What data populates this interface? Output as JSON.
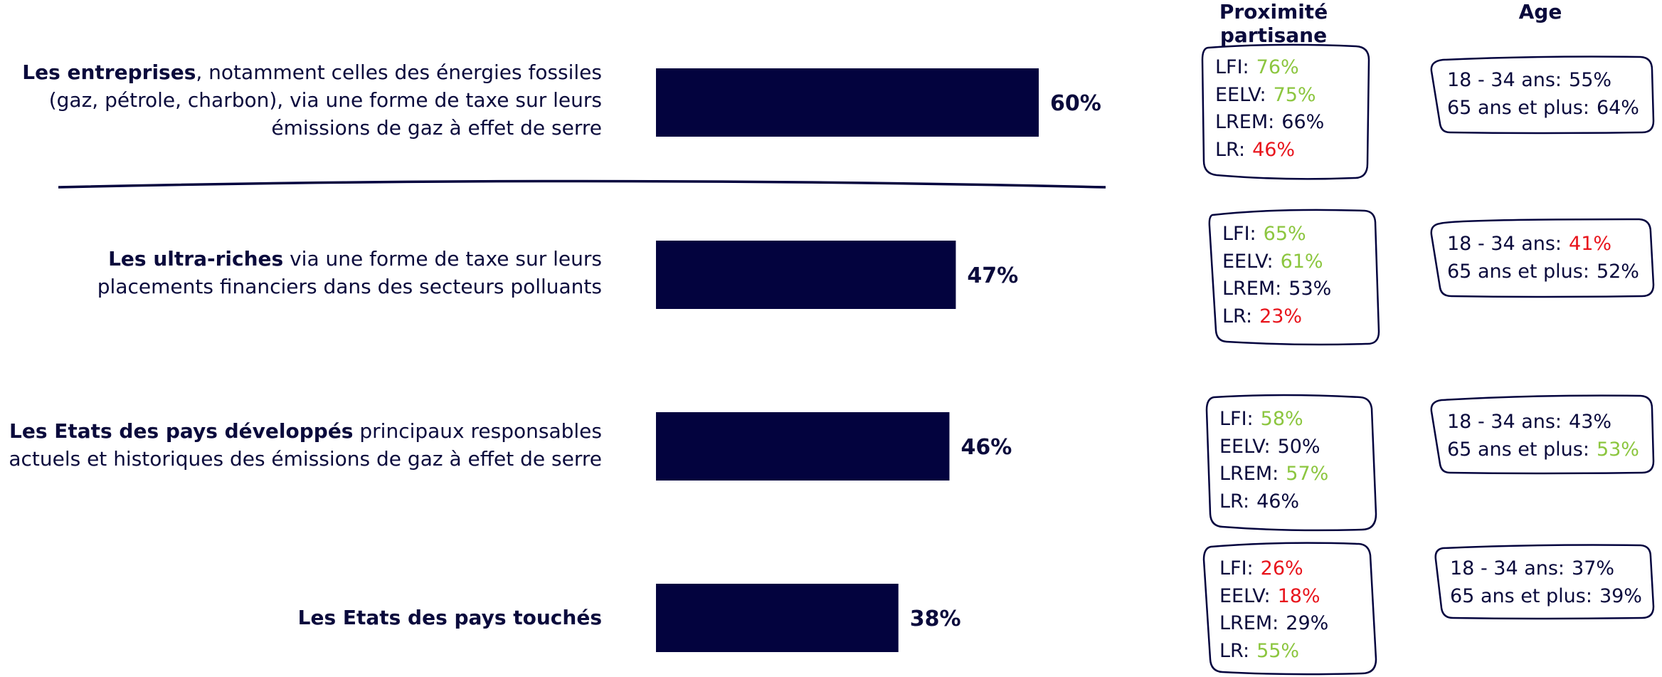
{
  "headers": {
    "party": "Proximité partisane",
    "age": "Age"
  },
  "colors": {
    "bar": "#03033e",
    "text": "#0a0a3c",
    "positive": "#8cc63f",
    "negative": "#e8141c"
  },
  "rows": [
    {
      "label_bold": "Les entreprises",
      "label_rest": ", notamment celles des énergies fossiles (gaz, pétrole, charbon), via une forme de taxe sur leurs émissions de gaz à effet de serre",
      "party": [
        {
          "name": "LFI:",
          "value": "76%",
          "tone": "positive"
        },
        {
          "name": "EELV:",
          "value": "75%",
          "tone": "positive"
        },
        {
          "name": "LREM:",
          "value": "66%",
          "tone": "dark"
        },
        {
          "name": "LR:",
          "value": "46%",
          "tone": "negative"
        }
      ],
      "age": [
        {
          "name": "18 - 34 ans:",
          "value": "55%",
          "tone": "dark"
        },
        {
          "name": "65 ans et plus:",
          "value": "64%",
          "tone": "dark"
        }
      ]
    },
    {
      "label_bold": "Les ultra-riches",
      "label_rest": " via une forme de taxe sur leurs placements financiers dans des secteurs polluants",
      "party": [
        {
          "name": "LFI:",
          "value": "65%",
          "tone": "positive"
        },
        {
          "name": "EELV:",
          "value": "61%",
          "tone": "positive"
        },
        {
          "name": "LREM:",
          "value": "53%",
          "tone": "dark"
        },
        {
          "name": "LR:",
          "value": "23%",
          "tone": "negative"
        }
      ],
      "age": [
        {
          "name": "18 - 34 ans:",
          "value": "41%",
          "tone": "negative"
        },
        {
          "name": "65 ans et plus:",
          "value": "52%",
          "tone": "dark"
        }
      ]
    },
    {
      "label_bold": "Les Etats des pays développés",
      "label_rest": " principaux responsables actuels et historiques des émissions de gaz à effet de serre",
      "party": [
        {
          "name": "LFI:",
          "value": "58%",
          "tone": "positive"
        },
        {
          "name": "EELV:",
          "value": "50%",
          "tone": "dark"
        },
        {
          "name": "LREM:",
          "value": "57%",
          "tone": "positive"
        },
        {
          "name": "LR:",
          "value": "46%",
          "tone": "dark"
        }
      ],
      "age": [
        {
          "name": "18 - 34 ans:",
          "value": "43%",
          "tone": "dark"
        },
        {
          "name": "65 ans et plus:",
          "value": "53%",
          "tone": "positive"
        }
      ]
    },
    {
      "label_bold": "Les Etats des pays touchés",
      "label_rest": "",
      "party": [
        {
          "name": "LFI:",
          "value": "26%",
          "tone": "negative"
        },
        {
          "name": "EELV:",
          "value": "18%",
          "tone": "negative"
        },
        {
          "name": "LREM:",
          "value": "29%",
          "tone": "dark"
        },
        {
          "name": "LR:",
          "value": "55%",
          "tone": "positive"
        }
      ],
      "age": [
        {
          "name": "18 - 34 ans:",
          "value": "37%",
          "tone": "dark"
        },
        {
          "name": "65 ans et plus:",
          "value": "39%",
          "tone": "dark"
        }
      ]
    }
  ],
  "chart_data": {
    "type": "bar",
    "orientation": "horizontal",
    "categories": [
      "Les entreprises, notamment celles des énergies fossiles (gaz, pétrole, charbon), via une forme de taxe sur leurs émissions de gaz à effet de serre",
      "Les ultra-riches via une forme de taxe sur leurs placements financiers dans des secteurs polluants",
      "Les Etats des pays développés principaux responsables actuels et historiques des émissions de gaz à effet de serre",
      "Les Etats des pays touchés"
    ],
    "values": [
      60,
      47,
      46,
      38
    ],
    "value_labels": [
      "60%",
      "47%",
      "46%",
      "38%"
    ],
    "xlim": [
      0,
      100
    ],
    "grid": false,
    "legend": "none"
  }
}
